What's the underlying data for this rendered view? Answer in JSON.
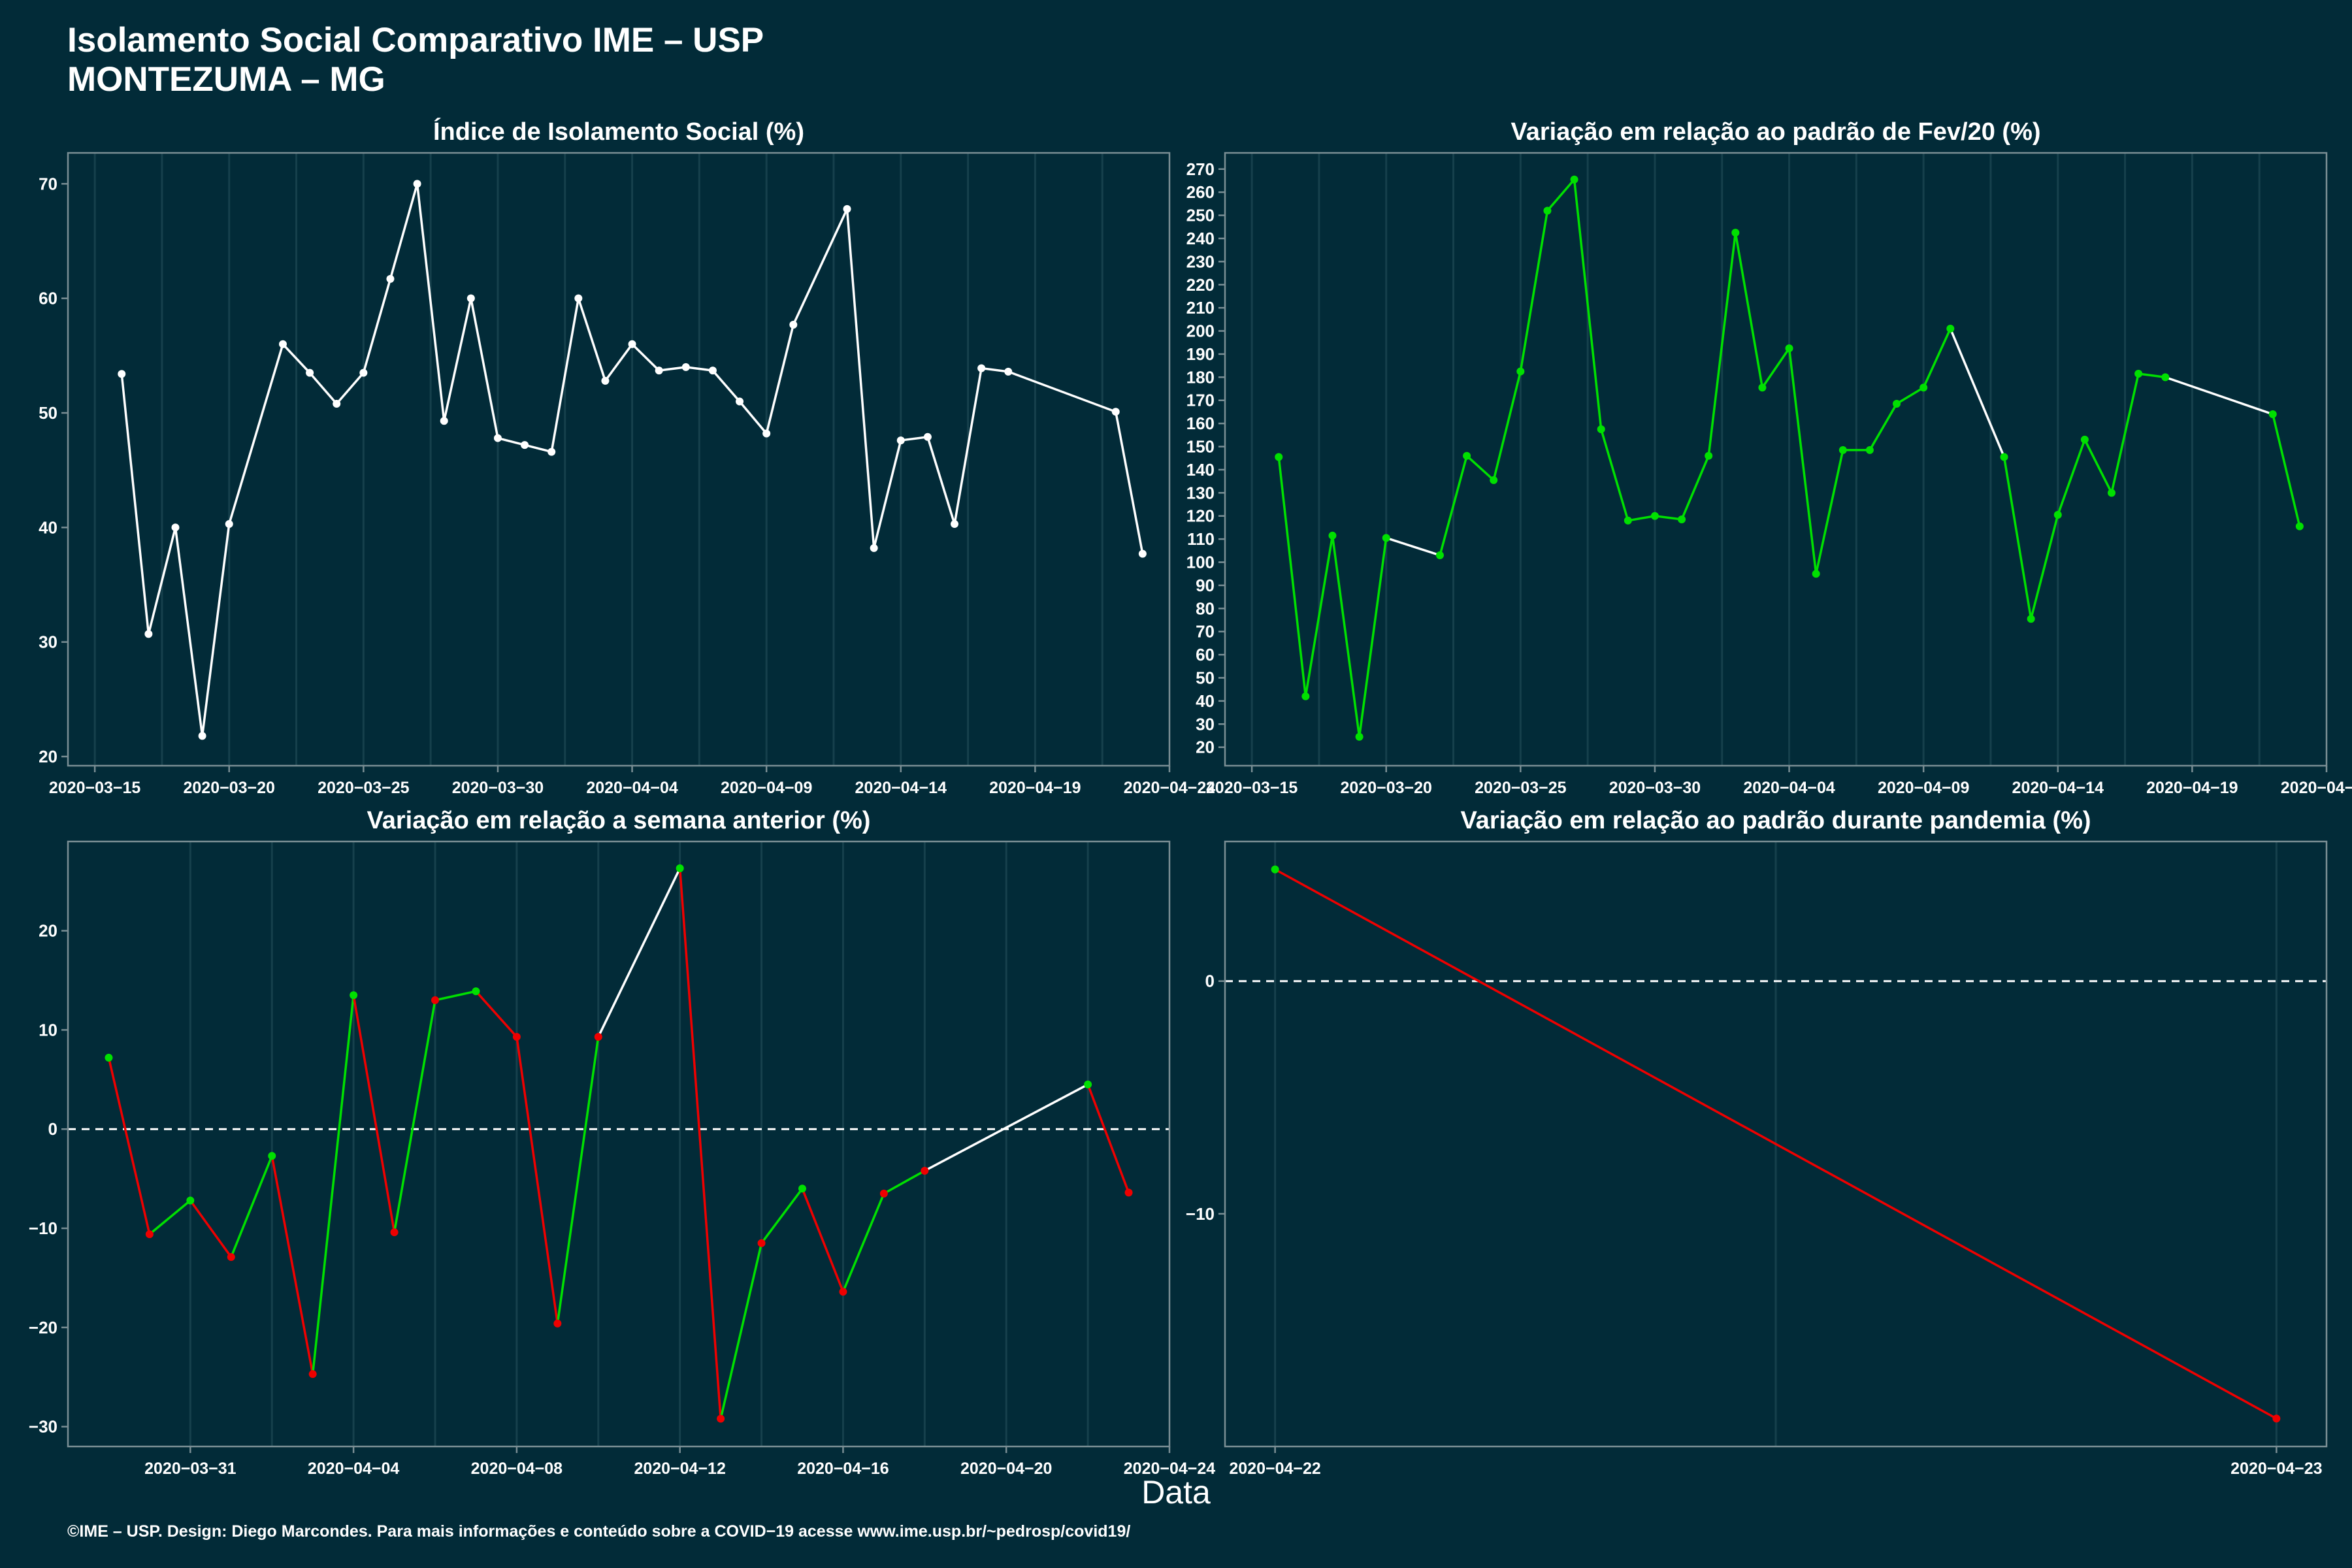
{
  "header": {
    "title_line1": "Isolamento Social Comparativo IME – USP",
    "title_line2": "MONTEZUMA – MG"
  },
  "x_caption": "Data",
  "footer": "©IME – USP. Design: Diego Marcondes. Para mais informações e conteúdo sobre a COVID−19 acesse www.ime.usp.br/~pedrosp/covid19/",
  "colors": {
    "background": "#022b38",
    "white_line": "#ffffff",
    "green": "#00e000",
    "red": "#ee0000",
    "grid": "#16404c",
    "border": "#7a8e94"
  },
  "chart_data": [
    {
      "type": "line",
      "title": "Índice de Isolamento Social (%)",
      "xlabel": "",
      "ylabel": "",
      "x_axis": "date",
      "xlim": [
        "2020-03-14",
        "2020-04-24"
      ],
      "ylim": [
        19.2,
        72.7
      ],
      "x_ticks": [
        "2020-03-15",
        "2020-03-20",
        "2020-03-25",
        "2020-03-30",
        "2020-04-04",
        "2020-04-09",
        "2020-04-14",
        "2020-04-19",
        "2020-04-24"
      ],
      "y_ticks": [
        20,
        30,
        40,
        50,
        60,
        70
      ],
      "grid": true,
      "series": [
        {
          "color": "#ffffff",
          "points": [
            [
              "2020-03-16",
              53.4
            ],
            [
              "2020-03-17",
              30.7
            ],
            [
              "2020-03-18",
              40.0
            ],
            [
              "2020-03-19",
              21.8
            ],
            [
              "2020-03-20",
              40.3
            ],
            [
              "2020-03-22",
              56.0
            ],
            [
              "2020-03-23",
              53.5
            ],
            [
              "2020-03-24",
              50.8
            ],
            [
              "2020-03-25",
              53.5
            ],
            [
              "2020-03-26",
              61.7
            ],
            [
              "2020-03-27",
              70.0
            ],
            [
              "2020-03-28",
              49.3
            ],
            [
              "2020-03-29",
              60.0
            ],
            [
              "2020-03-30",
              47.8
            ],
            [
              "2020-03-31",
              47.2
            ],
            [
              "2020-04-01",
              46.6
            ],
            [
              "2020-04-02",
              60.0
            ],
            [
              "2020-04-03",
              52.8
            ],
            [
              "2020-04-04",
              56.0
            ],
            [
              "2020-04-05",
              53.7
            ],
            [
              "2020-04-06",
              54.0
            ],
            [
              "2020-04-07",
              53.7
            ],
            [
              "2020-04-08",
              51.0
            ],
            [
              "2020-04-09",
              48.2
            ],
            [
              "2020-04-10",
              57.7
            ],
            [
              "2020-04-12",
              67.8
            ],
            [
              "2020-04-13",
              38.2
            ],
            [
              "2020-04-14",
              47.6
            ],
            [
              "2020-04-15",
              47.9
            ],
            [
              "2020-04-16",
              40.3
            ],
            [
              "2020-04-17",
              53.9
            ],
            [
              "2020-04-18",
              53.6
            ],
            [
              "2020-04-22",
              50.1
            ],
            [
              "2020-04-23",
              37.7
            ]
          ]
        }
      ]
    },
    {
      "type": "line",
      "title": "Variação em relação ao padrão de Fev/20 (%)",
      "xlabel": "",
      "ylabel": "",
      "x_axis": "date",
      "xlim": [
        "2020-03-14",
        "2020-04-24"
      ],
      "ylim": [
        12,
        277
      ],
      "x_ticks": [
        "2020-03-15",
        "2020-03-20",
        "2020-03-25",
        "2020-03-30",
        "2020-04-04",
        "2020-04-09",
        "2020-04-14",
        "2020-04-19",
        "2020-04-24"
      ],
      "y_ticks": [
        20,
        30,
        40,
        50,
        60,
        70,
        80,
        90,
        100,
        110,
        120,
        130,
        140,
        150,
        160,
        170,
        180,
        190,
        200,
        210,
        220,
        230,
        240,
        250,
        260,
        270
      ],
      "grid": true,
      "series": [
        {
          "color": "#00e000",
          "points": [
            [
              "2020-03-16",
              145.5
            ],
            [
              "2020-03-17",
              42.0
            ],
            [
              "2020-03-18",
              111.5
            ],
            [
              "2020-03-19",
              24.5
            ],
            [
              "2020-03-20",
              110.5
            ],
            [
              "2020-03-22",
              103.0
            ],
            [
              "2020-03-23",
              146.0
            ],
            [
              "2020-03-24",
              135.5
            ],
            [
              "2020-03-25",
              182.5
            ],
            [
              "2020-03-26",
              252.0
            ],
            [
              "2020-03-27",
              265.5
            ],
            [
              "2020-03-28",
              157.5
            ],
            [
              "2020-03-29",
              118.0
            ],
            [
              "2020-03-30",
              120.0
            ],
            [
              "2020-03-31",
              118.5
            ],
            [
              "2020-04-01",
              146.0
            ],
            [
              "2020-04-02",
              242.5
            ],
            [
              "2020-04-03",
              175.5
            ],
            [
              "2020-04-04",
              192.5
            ],
            [
              "2020-04-05",
              95.0
            ],
            [
              "2020-04-06",
              148.5
            ],
            [
              "2020-04-07",
              148.5
            ],
            [
              "2020-04-08",
              168.5
            ],
            [
              "2020-04-09",
              175.5
            ],
            [
              "2020-04-10",
              201.0
            ],
            [
              "2020-04-12",
              145.5
            ],
            [
              "2020-04-13",
              75.5
            ],
            [
              "2020-04-14",
              120.5
            ],
            [
              "2020-04-15",
              153.0
            ],
            [
              "2020-04-16",
              130.0
            ],
            [
              "2020-04-17",
              181.5
            ],
            [
              "2020-04-18",
              180.0
            ],
            [
              "2020-04-22",
              164.0
            ],
            [
              "2020-04-23",
              115.5
            ]
          ]
        }
      ]
    },
    {
      "type": "line",
      "title": "Variação em relação a semana anterior (%)",
      "xlabel": "",
      "ylabel": "",
      "x_axis": "date",
      "xlim": [
        "2020-03-28",
        "2020-04-24"
      ],
      "ylim": [
        -32,
        29
      ],
      "x_ticks": [
        "2020-03-31",
        "2020-04-04",
        "2020-04-08",
        "2020-04-12",
        "2020-04-16",
        "2020-04-20",
        "2020-04-24"
      ],
      "y_ticks": [
        -30,
        -20,
        -10,
        0,
        10,
        20
      ],
      "reference_line": 0,
      "grid": true,
      "series": [
        {
          "color": "#ffffff",
          "points": [
            [
              "2020-03-29",
              7.2
            ],
            [
              "2020-03-30",
              -10.6
            ],
            [
              "2020-03-31",
              -7.2
            ],
            [
              "2020-04-01",
              -12.9
            ],
            [
              "2020-04-02",
              -2.7
            ],
            [
              "2020-04-03",
              -24.7
            ],
            [
              "2020-04-04",
              13.5
            ],
            [
              "2020-04-05",
              -10.4
            ],
            [
              "2020-04-06",
              13.0
            ],
            [
              "2020-04-07",
              13.9
            ],
            [
              "2020-04-08",
              9.3
            ],
            [
              "2020-04-09",
              -19.6
            ],
            [
              "2020-04-10",
              9.3
            ],
            [
              "2020-04-12",
              26.3
            ],
            [
              "2020-04-13",
              -29.2
            ],
            [
              "2020-04-14",
              -11.5
            ],
            [
              "2020-04-15",
              -6.0
            ],
            [
              "2020-04-16",
              -16.4
            ],
            [
              "2020-04-17",
              -6.5
            ],
            [
              "2020-04-18",
              -4.2
            ],
            [
              "2020-04-22",
              4.5
            ],
            [
              "2020-04-23",
              -6.4
            ]
          ]
        }
      ]
    },
    {
      "type": "line",
      "title": "Variação em relação ao padrão durante pandemia (%)",
      "xlabel": "",
      "ylabel": "",
      "x_axis": "date",
      "xlim": [
        "2020-04-22",
        "2020-04-23"
      ],
      "x_pad": 0.05,
      "ylim": [
        -20,
        6
      ],
      "x_ticks": [
        "2020-04-22",
        "2020-04-23"
      ],
      "y_ticks": [
        -10,
        0
      ],
      "reference_line": 0,
      "grid": true,
      "series": [
        {
          "color": "#ee0000",
          "points": [
            [
              "2020-04-22",
              4.8
            ],
            [
              "2020-04-23",
              -18.8
            ]
          ]
        }
      ]
    }
  ]
}
